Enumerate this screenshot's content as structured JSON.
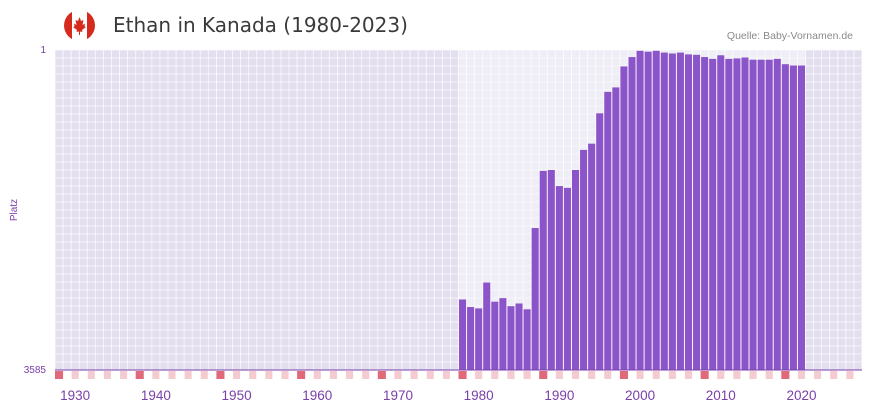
{
  "header": {
    "title": "Ethan in Kanada (1980-2023)",
    "source": "Quelle: Baby-Vornamen.de",
    "flag_icon": "canada-flag-icon"
  },
  "colors": {
    "bar": "#8b55c9",
    "accent": "#7a3fa8",
    "marker": "#e06a7a",
    "flag_red": "#d52b1e"
  },
  "chart_data": {
    "type": "bar",
    "title": "Ethan in Kanada (1980-2023)",
    "ylabel": "Platz",
    "xlabel": "",
    "y_inverted": true,
    "ylim": [
      1,
      3585
    ],
    "y_tick_labels": [
      "1",
      "3585"
    ],
    "xlim": [
      1928,
      2028
    ],
    "x_tick_values": [
      1930,
      1940,
      1950,
      1960,
      1970,
      1980,
      1990,
      2000,
      2010,
      2020
    ],
    "x_tick_labels": [
      "1930",
      "1940",
      "1950",
      "1960",
      "1970",
      "1980",
      "1990",
      "2000",
      "2010",
      "2020"
    ],
    "series": [
      {
        "name": "Platz",
        "x": [
          1978,
          1979,
          1980,
          1981,
          1982,
          1983,
          1984,
          1985,
          1986,
          1987,
          1988,
          1989,
          1990,
          1991,
          1992,
          1993,
          1994,
          1995,
          1996,
          1997,
          1998,
          1999,
          2000,
          2001,
          2002,
          2003,
          2004,
          2005,
          2006,
          2007,
          2008,
          2009,
          2010,
          2011,
          2012,
          2013,
          2014,
          2015,
          2016,
          2017,
          2018,
          2019,
          2020
        ],
        "values": [
          2795,
          2880,
          2895,
          2605,
          2820,
          2780,
          2870,
          2840,
          2905,
          1995,
          1355,
          1345,
          1525,
          1545,
          1345,
          1120,
          1050,
          710,
          470,
          420,
          185,
          80,
          10,
          20,
          10,
          30,
          40,
          30,
          50,
          55,
          80,
          100,
          60,
          100,
          95,
          85,
          110,
          110,
          110,
          100,
          160,
          175,
          175
        ]
      }
    ]
  }
}
